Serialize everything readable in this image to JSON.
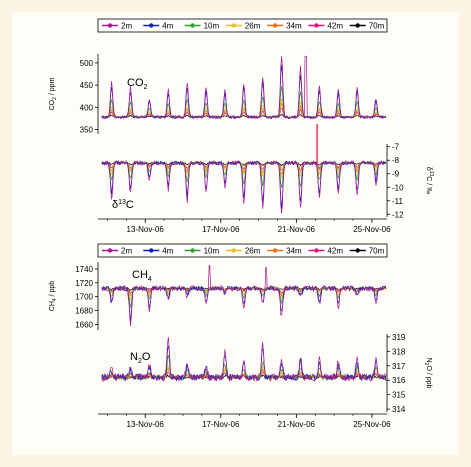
{
  "chart_data": [
    {
      "type": "line",
      "panel": "co2",
      "legend": {
        "items": [
          "2m",
          "4m",
          "10m",
          "26m",
          "34m",
          "42m",
          "70m"
        ],
        "placement": "top"
      },
      "series_colors": [
        "#a8188c",
        "#1020c8",
        "#33a02c",
        "#e8c020",
        "#f07010",
        "#e8107a",
        "#000000"
      ],
      "title": "CO",
      "title_sub": "2",
      "ylabel": "CO",
      "ylabel_sub": "2",
      "ylabel_unit": " / ppm",
      "ylim": [
        340,
        520
      ],
      "yticks": [
        "500",
        "450",
        "400",
        "350"
      ],
      "yticks_values": [
        500,
        450,
        400,
        350
      ],
      "x_date_ticks": [
        "13-Nov-06",
        "17-Nov-06",
        "21-Nov-06",
        "25-Nov-06"
      ],
      "x_date_tick_days": [
        3,
        7,
        11,
        15
      ],
      "xlim_days": [
        0.5,
        15.8
      ],
      "series_description": "baseline ~378 ppm at 70 m with daily nighttime spikes at lower heights reaching ~440-460 ppm",
      "baseline": 378,
      "daily_peak_2m": [
        455,
        445,
        420,
        440,
        455,
        445,
        440,
        455,
        470,
        515,
        490,
        450,
        440,
        445,
        420
      ],
      "spike_day": 11.5,
      "spike_value": 515
    },
    {
      "type": "line",
      "panel": "d13c",
      "title": "δ",
      "title_sup": "13",
      "title_tail": "C",
      "ylabel": "δ",
      "ylabel_sup": "13",
      "ylabel_unit": "C / ‰",
      "ylim": [
        -12.2,
        -6.8
      ],
      "yticks": [
        "-7",
        "-8",
        "-9",
        "-10",
        "-11",
        "-12"
      ],
      "yticks_values": [
        -7,
        -8,
        -9,
        -10,
        -11,
        -12
      ],
      "baseline": -8.2,
      "daily_min_2m": [
        -10.8,
        -10.5,
        -9.5,
        -10.2,
        -11.0,
        -10.4,
        -10.0,
        -11.2,
        -11.5,
        -12.0,
        -11.6,
        -10.8,
        -10.5,
        -10.6,
        -9.8
      ]
    },
    {
      "type": "line",
      "panel": "ch4",
      "legend": {
        "items": [
          "2m",
          "4m",
          "10m",
          "26m",
          "34m",
          "42m",
          "70m"
        ],
        "placement": "top"
      },
      "title": "CH",
      "title_sub": "4",
      "ylabel": "CH",
      "ylabel_sub": "4",
      "ylabel_unit": " / ppb",
      "ylim": [
        1652,
        1750
      ],
      "yticks": [
        "1740",
        "1720",
        "1700",
        "1680",
        "1660"
      ],
      "yticks_values": [
        1740,
        1720,
        1700,
        1680,
        1660
      ],
      "baseline": 1712,
      "daily_min_2m": [
        1690,
        1660,
        1680,
        1695,
        1700,
        1690,
        1705,
        1685,
        1690,
        1670,
        1700,
        1690,
        1685,
        1700,
        1690
      ]
    },
    {
      "type": "line",
      "panel": "n2o",
      "title": "N",
      "title_sub": "2",
      "title_tail": "O",
      "ylabel": "N",
      "ylabel_sub": "2",
      "ylabel_unit": "O / ppb",
      "ylim": [
        313.8,
        319.2
      ],
      "yticks": [
        "319",
        "318",
        "317",
        "316",
        "315",
        "314"
      ],
      "yticks_values": [
        319,
        318,
        317,
        316,
        315,
        314
      ],
      "x_date_ticks": [
        "13-Nov-06",
        "17-Nov-06",
        "21-Nov-06",
        "25-Nov-06"
      ],
      "x_date_tick_days": [
        3,
        7,
        11,
        15
      ],
      "xlim_days": [
        0.5,
        15.8
      ],
      "baseline": 316.2,
      "daily_max_2m": [
        316.8,
        316.9,
        317.0,
        319.0,
        317.2,
        317.0,
        318.2,
        317.3,
        318.5,
        317.4,
        317.5,
        317.4,
        317.3,
        317.5,
        317.6
      ]
    }
  ]
}
